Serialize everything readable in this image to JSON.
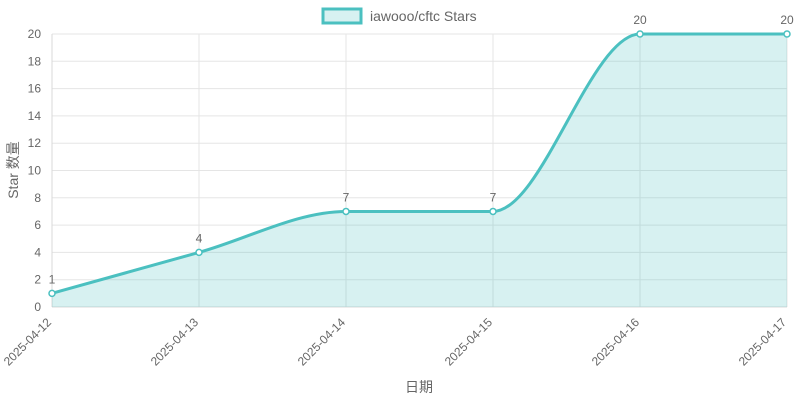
{
  "chart_data": {
    "type": "line",
    "title": "",
    "xlabel": "日期",
    "ylabel": "Star 数量",
    "x": [
      "2025-04-12",
      "2025-04-13",
      "2025-04-14",
      "2025-04-15",
      "2025-04-16",
      "2025-04-17"
    ],
    "series": [
      {
        "name": "iawooo/cftc Stars",
        "values": [
          1,
          4,
          7,
          7,
          20,
          20
        ]
      }
    ],
    "ylim": [
      0,
      20
    ],
    "yticks": [
      0,
      2,
      4,
      6,
      8,
      10,
      12,
      14,
      16,
      18,
      20
    ],
    "grid": true,
    "legend_position": "top-center",
    "fill": true,
    "smooth": true,
    "colors": {
      "line": "#4bc0c0",
      "fill": "#4bc0c0",
      "grid": "#e5e5e5",
      "axis": "#d9d9d9",
      "text": "#666666"
    }
  }
}
